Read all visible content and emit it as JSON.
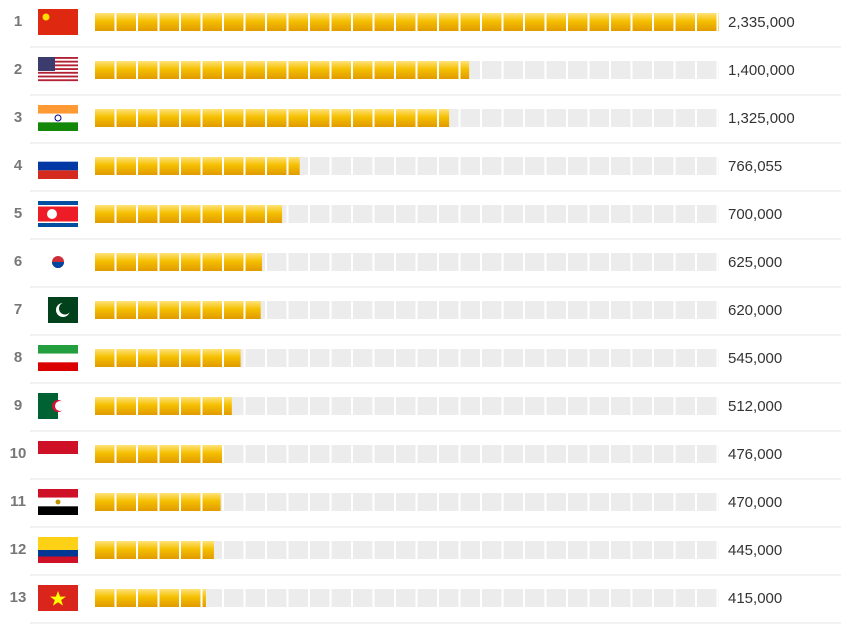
{
  "chart_data": {
    "type": "bar",
    "orientation": "horizontal",
    "categories": [
      "1",
      "2",
      "3",
      "4",
      "5",
      "6",
      "7",
      "8",
      "9",
      "10",
      "11",
      "12",
      "13"
    ],
    "values": [
      2335000,
      1400000,
      1325000,
      766055,
      700000,
      625000,
      620000,
      545000,
      512000,
      476000,
      470000,
      445000,
      415000
    ],
    "value_labels": [
      "2,335,000",
      "1,400,000",
      "1,325,000",
      "766,055",
      "700,000",
      "625,000",
      "620,000",
      "545,000",
      "512,000",
      "476,000",
      "470,000",
      "445,000",
      "415,000"
    ],
    "color": "#f0b000"
  }
}
